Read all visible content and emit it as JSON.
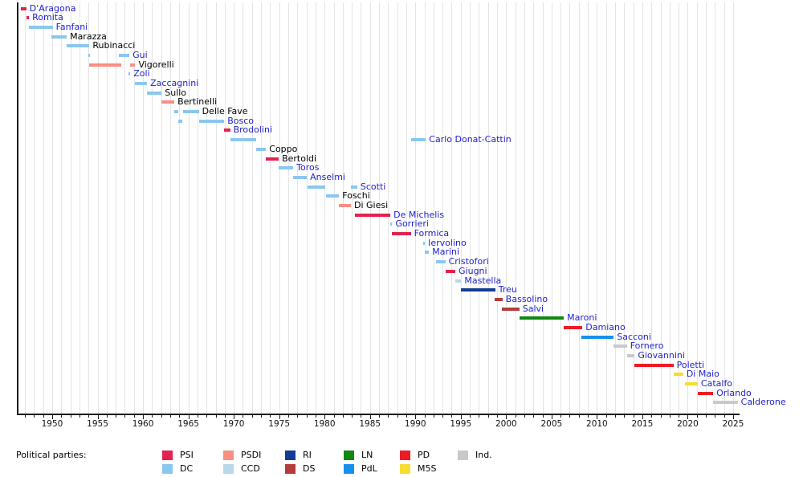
{
  "chart_data": {
    "type": "timeline",
    "description": "Gantt-style timeline of ministers with party-colored term bars",
    "x_axis": {
      "min": 1946.1,
      "max": 2025.7,
      "major_tick_labels": [
        1950,
        1955,
        1960,
        1965,
        1970,
        1975,
        1980,
        1985,
        1990,
        1995,
        2000,
        2005,
        2010,
        2015,
        2020,
        2025
      ],
      "minor_tick_interval": 1,
      "grid": true
    },
    "party_colors": {
      "PSI": "#e3234e",
      "PSDI": "#f98f82",
      "RI": "#123c96",
      "LN": "#118811",
      "PD": "#ec1c24",
      "Ind.": "#c9c9c9",
      "DC": "#8ac7ef",
      "CCD": "#b7d9ea",
      "DS": "#b43c3c",
      "PdL": "#1790ec",
      "M5S": "#f8dc2f"
    },
    "ministers": [
      {
        "name": "D'Aragona",
        "party": "PSI",
        "link": true,
        "terms": [
          [
            1946.55,
            1947.15
          ]
        ]
      },
      {
        "name": "Romita",
        "party": "PSI",
        "link": true,
        "terms": [
          [
            1947.15,
            1947.45
          ]
        ]
      },
      {
        "name": "Fanfani",
        "party": "DC",
        "link": true,
        "terms": [
          [
            1947.4,
            1950.05
          ]
        ]
      },
      {
        "name": "Marazza",
        "party": "DC",
        "link": false,
        "terms": [
          [
            1949.95,
            1951.6
          ]
        ]
      },
      {
        "name": "Rubinacci",
        "party": "DC",
        "link": false,
        "terms": [
          [
            1951.6,
            1954.1
          ]
        ]
      },
      {
        "name": "Gui",
        "party": "DC",
        "link": true,
        "terms": [
          [
            1954.0,
            1954.2
          ],
          [
            1957.35,
            1958.5
          ]
        ]
      },
      {
        "name": "Vigorelli",
        "party": "PSDI",
        "link": false,
        "terms": [
          [
            1954.1,
            1957.6
          ],
          [
            1958.6,
            1959.15
          ]
        ]
      },
      {
        "name": "Zoli",
        "party": "DC",
        "link": true,
        "terms": [
          [
            1958.4,
            1958.6
          ]
        ]
      },
      {
        "name": "Zaccagnini",
        "party": "DC",
        "link": true,
        "terms": [
          [
            1959.15,
            1960.45
          ]
        ]
      },
      {
        "name": "Sullo",
        "party": "DC",
        "link": false,
        "terms": [
          [
            1960.45,
            1962.05
          ]
        ]
      },
      {
        "name": "Bertinelli",
        "party": "PSDI",
        "link": false,
        "terms": [
          [
            1962.05,
            1963.45
          ]
        ]
      },
      {
        "name": "Delle Fave",
        "party": "DC",
        "link": false,
        "terms": [
          [
            1963.45,
            1963.85
          ],
          [
            1964.4,
            1966.15
          ]
        ]
      },
      {
        "name": "Bosco",
        "party": "DC",
        "link": true,
        "terms": [
          [
            1963.85,
            1964.3
          ],
          [
            1966.15,
            1968.95
          ]
        ]
      },
      {
        "name": "Brodolini",
        "party": "PSI",
        "link": true,
        "terms": [
          [
            1968.95,
            1969.6
          ]
        ]
      },
      {
        "name": "Carlo Donat-Cattin",
        "party": "DC",
        "link": true,
        "terms": [
          [
            1969.6,
            1972.45
          ],
          [
            1989.55,
            1991.15
          ]
        ]
      },
      {
        "name": "Coppo",
        "party": "DC",
        "link": false,
        "terms": [
          [
            1972.45,
            1973.55
          ]
        ]
      },
      {
        "name": "Bertoldi",
        "party": "PSI",
        "link": false,
        "terms": [
          [
            1973.55,
            1974.95
          ]
        ]
      },
      {
        "name": "Toros",
        "party": "DC",
        "link": true,
        "terms": [
          [
            1974.95,
            1976.55
          ]
        ]
      },
      {
        "name": "Anselmi",
        "party": "DC",
        "link": true,
        "terms": [
          [
            1976.55,
            1978.05
          ]
        ]
      },
      {
        "name": "Scotti",
        "party": "DC",
        "link": true,
        "terms": [
          [
            1978.1,
            1980.1
          ],
          [
            1982.9,
            1983.6
          ]
        ]
      },
      {
        "name": "Foschi",
        "party": "DC",
        "link": false,
        "terms": [
          [
            1980.15,
            1981.6
          ]
        ]
      },
      {
        "name": "Di Giesi",
        "party": "PSDI",
        "link": false,
        "terms": [
          [
            1981.55,
            1982.9
          ]
        ]
      },
      {
        "name": "De Michelis",
        "party": "PSI",
        "link": true,
        "terms": [
          [
            1983.35,
            1987.25
          ]
        ]
      },
      {
        "name": "Gorrieri",
        "party": "DC",
        "link": true,
        "terms": [
          [
            1987.25,
            1987.45
          ]
        ]
      },
      {
        "name": "Formica",
        "party": "PSI",
        "link": true,
        "terms": [
          [
            1987.4,
            1989.5
          ]
        ]
      },
      {
        "name": "Iervolino",
        "party": "DC",
        "link": true,
        "terms": [
          [
            1990.85,
            1991.05
          ]
        ]
      },
      {
        "name": "Marini",
        "party": "DC",
        "link": true,
        "terms": [
          [
            1991.05,
            1991.5
          ]
        ]
      },
      {
        "name": "Cristofori",
        "party": "DC",
        "link": true,
        "terms": [
          [
            1992.25,
            1993.3
          ]
        ]
      },
      {
        "name": "Giugni",
        "party": "PSI",
        "link": true,
        "terms": [
          [
            1993.3,
            1994.4
          ]
        ]
      },
      {
        "name": "Mastella",
        "party": "CCD",
        "link": true,
        "terms": [
          [
            1994.4,
            1995.05
          ]
        ]
      },
      {
        "name": "Treu",
        "party": "RI",
        "link": true,
        "terms": [
          [
            1995.05,
            1998.8
          ]
        ]
      },
      {
        "name": "Bassolino",
        "party": "DS",
        "link": true,
        "terms": [
          [
            1998.75,
            1999.6
          ]
        ]
      },
      {
        "name": "Salvi",
        "party": "DS",
        "link": true,
        "terms": [
          [
            1999.5,
            2001.45
          ]
        ]
      },
      {
        "name": "Maroni",
        "party": "LN",
        "link": true,
        "terms": [
          [
            2001.45,
            2006.35
          ]
        ]
      },
      {
        "name": "Damiano",
        "party": "PD",
        "link": true,
        "terms": [
          [
            2006.35,
            2008.4
          ]
        ]
      },
      {
        "name": "Sacconi",
        "party": "PdL",
        "link": true,
        "terms": [
          [
            2008.3,
            2011.85
          ]
        ]
      },
      {
        "name": "Fornero",
        "party": "Ind.",
        "link": true,
        "terms": [
          [
            2011.85,
            2013.3
          ]
        ]
      },
      {
        "name": "Giovannini",
        "party": "Ind.",
        "link": true,
        "terms": [
          [
            2013.3,
            2014.15
          ]
        ]
      },
      {
        "name": "Poletti",
        "party": "PD",
        "link": true,
        "terms": [
          [
            2014.1,
            2018.42
          ]
        ]
      },
      {
        "name": "Di Maio",
        "party": "M5S",
        "link": true,
        "terms": [
          [
            2018.42,
            2019.5
          ]
        ]
      },
      {
        "name": "Catalfo",
        "party": "M5S",
        "link": true,
        "terms": [
          [
            2019.65,
            2021.1
          ]
        ]
      },
      {
        "name": "Orlando",
        "party": "PD",
        "link": true,
        "terms": [
          [
            2021.1,
            2022.8
          ]
        ]
      },
      {
        "name": "Calderone",
        "party": "Ind.",
        "link": true,
        "terms": [
          [
            2022.8,
            2025.5
          ]
        ]
      }
    ]
  },
  "legend": {
    "title": "Political parties:",
    "rows": [
      [
        "PSI",
        "PSDI",
        "RI",
        "LN",
        "PD",
        "Ind."
      ],
      [
        "DC",
        "CCD",
        "DS",
        "PdL",
        "M5S"
      ]
    ]
  }
}
